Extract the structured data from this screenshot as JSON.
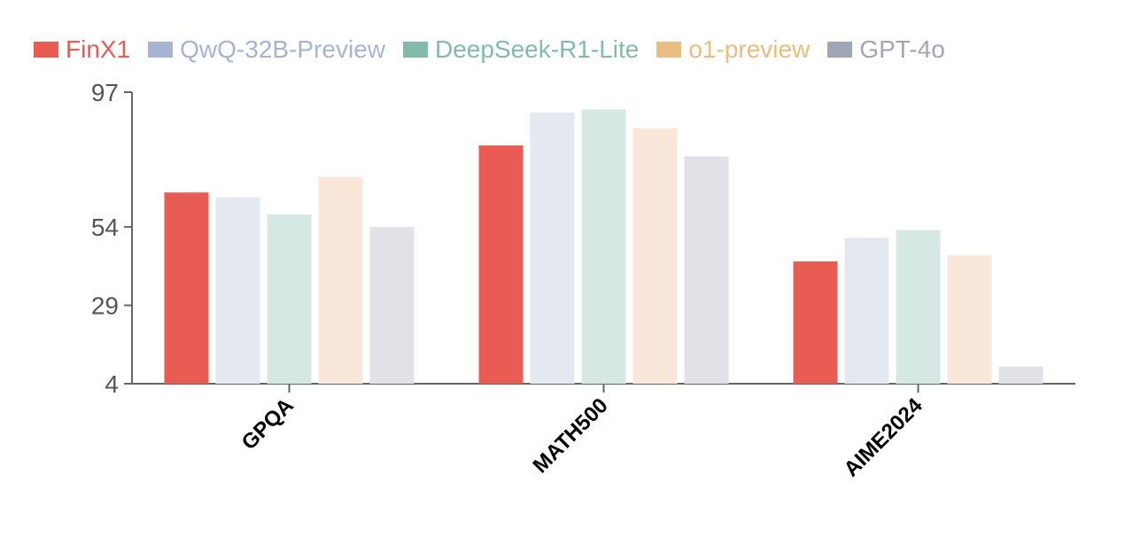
{
  "chart_data": {
    "type": "bar",
    "categories": [
      "GPQA",
      "MATH500",
      "AIME2024"
    ],
    "series": [
      {
        "name": "FinX1",
        "color": "#e85c53",
        "legend_color": "#e85c53",
        "values": [
          65,
          80,
          43
        ]
      },
      {
        "name": "QwQ-32B-Preview",
        "color": "#e3e8f1",
        "legend_color": "#a6b4d1",
        "values": [
          63.5,
          90.5,
          50.5
        ]
      },
      {
        "name": "DeepSeek-R1-Lite",
        "color": "#d6e8e3",
        "legend_color": "#82bca9",
        "values": [
          58,
          91.5,
          53
        ]
      },
      {
        "name": "o1-preview",
        "color": "#f9e8da",
        "legend_color": "#eabd80",
        "values": [
          70,
          85.5,
          45
        ]
      },
      {
        "name": "GPT-4o",
        "color": "#e1e2e7",
        "legend_color": "#a0a6b5",
        "values": [
          54,
          76.5,
          9.5
        ]
      }
    ],
    "yticks": [
      "97",
      "54",
      "29",
      "4"
    ],
    "ylim": [
      4,
      97
    ],
    "title": "",
    "xlabel": "",
    "ylabel": "",
    "legend_position": "top-left",
    "grid": false
  }
}
